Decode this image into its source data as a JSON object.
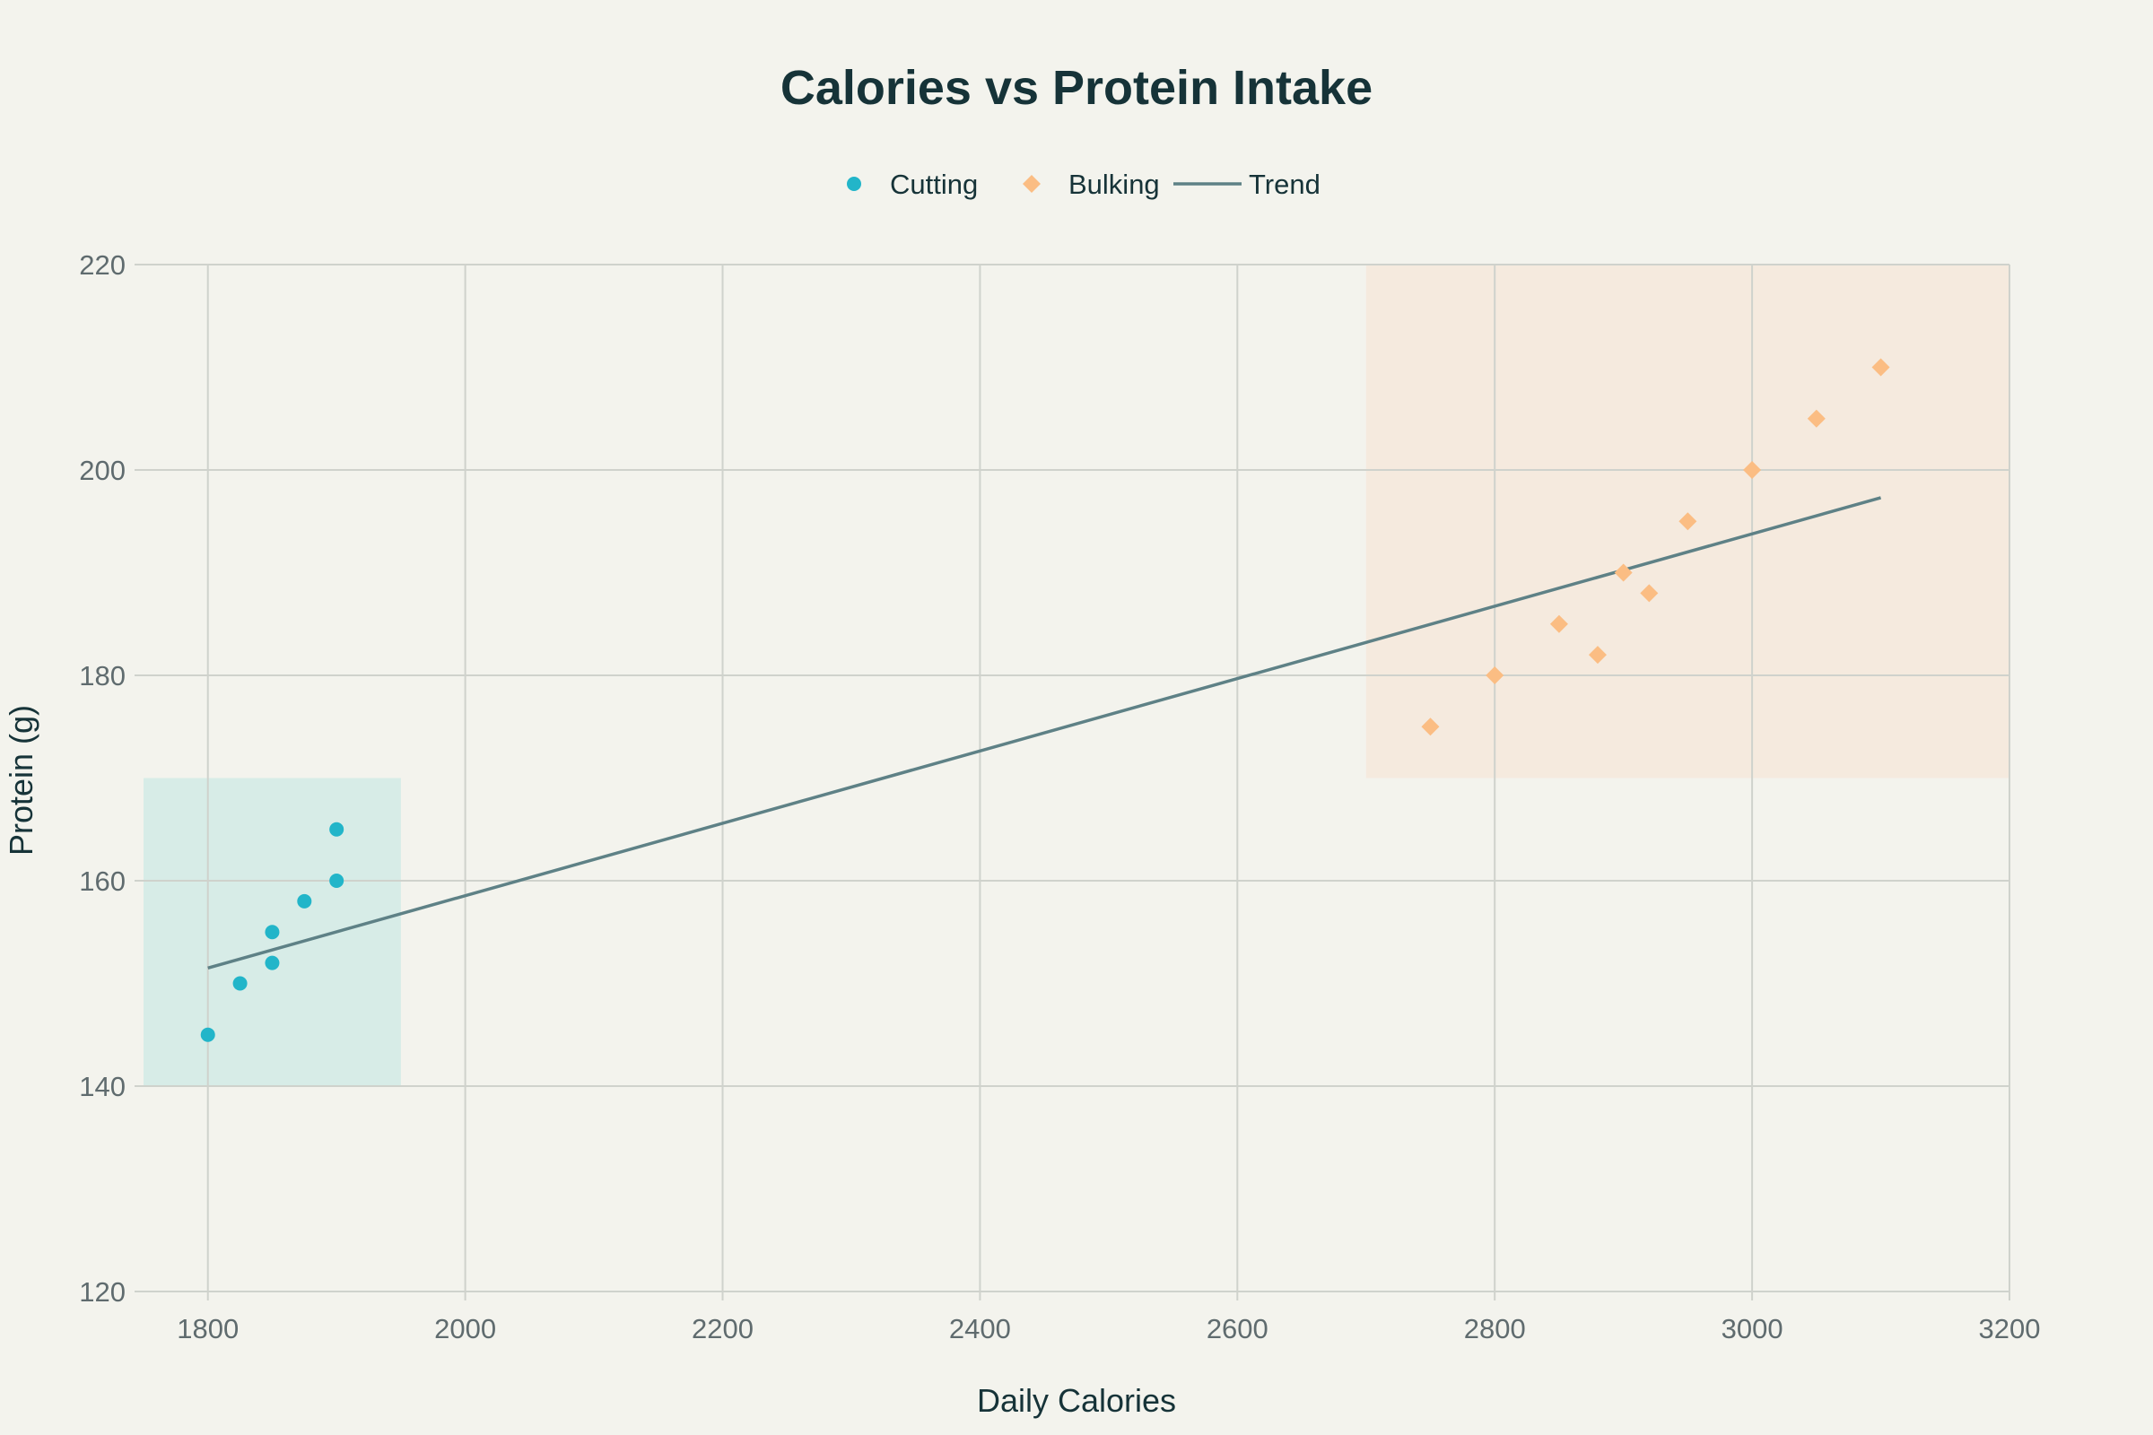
{
  "chart_data": {
    "type": "scatter",
    "title": "Calories vs Protein Intake",
    "xlabel": "Daily Calories",
    "ylabel": "Protein (g)",
    "xlim": [
      1750,
      3200
    ],
    "ylim": [
      120,
      220
    ],
    "x_ticks": [
      1800,
      2000,
      2200,
      2400,
      2600,
      2800,
      3000,
      3200
    ],
    "y_ticks": [
      120,
      140,
      160,
      180,
      200,
      220
    ],
    "grid": true,
    "legend_position": "top-center",
    "series": [
      {
        "name": "Cutting",
        "marker": "circle",
        "color": "#22b5c9",
        "x": [
          1800,
          1825,
          1850,
          1850,
          1875,
          1900,
          1900
        ],
        "y": [
          145,
          150,
          152,
          155,
          158,
          160,
          165
        ]
      },
      {
        "name": "Bulking",
        "marker": "diamond",
        "color": "#fbbd83",
        "x": [
          2750,
          2800,
          2850,
          2880,
          2900,
          2920,
          2950,
          3000,
          3050,
          3100
        ],
        "y": [
          175,
          180,
          185,
          182,
          190,
          188,
          195,
          200,
          205,
          210
        ]
      }
    ],
    "trend": {
      "name": "Trend",
      "color": "#5e8186",
      "x": [
        1800,
        3100
      ],
      "y": [
        151.5,
        197.3
      ]
    },
    "regions": [
      {
        "x": [
          1750,
          1950
        ],
        "y": [
          140,
          170
        ],
        "color": "#d7ece7"
      },
      {
        "x": [
          2700,
          3200
        ],
        "y": [
          170,
          220
        ],
        "color": "#f5eade"
      }
    ]
  }
}
